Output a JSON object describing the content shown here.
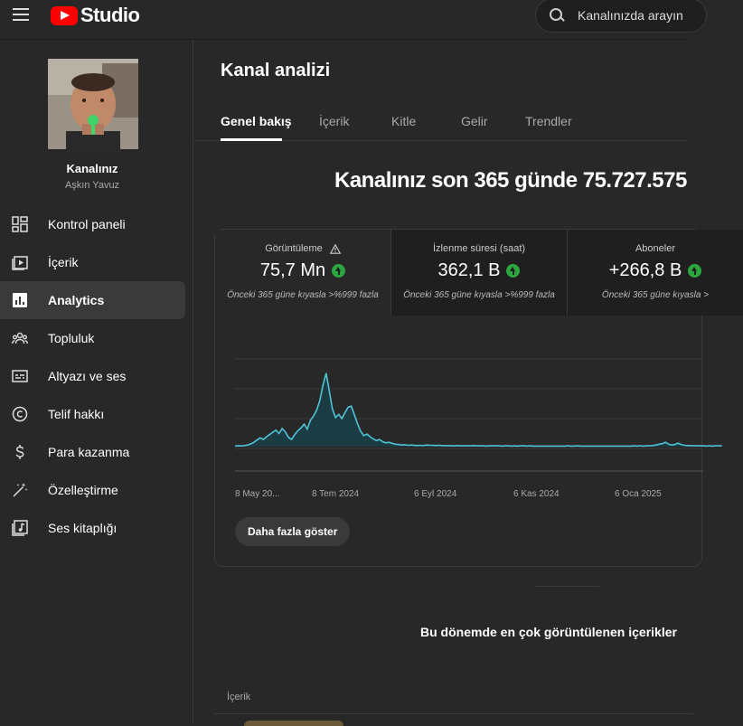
{
  "app": {
    "logo_text": "Studio",
    "brand_color": "#ff0000"
  },
  "search": {
    "placeholder": "Kanalınızda arayın"
  },
  "sidebar": {
    "channel_name": "Kanalınız",
    "channel_owner": "Aşkın Yavuz",
    "items": [
      {
        "label": "Kontrol paneli",
        "icon": "dashboard-icon"
      },
      {
        "label": "İçerik",
        "icon": "content-icon"
      },
      {
        "label": "Analytics",
        "icon": "analytics-icon",
        "active": true
      },
      {
        "label": "Topluluk",
        "icon": "community-icon"
      },
      {
        "label": "Altyazı ve ses",
        "icon": "subtitles-icon"
      },
      {
        "label": "Telif hakkı",
        "icon": "copyright-icon"
      },
      {
        "label": "Para kazanma",
        "icon": "dollar-icon"
      },
      {
        "label": "Özelleştirme",
        "icon": "magic-wand-icon"
      },
      {
        "label": "Ses kitaplığı",
        "icon": "audio-library-icon"
      }
    ]
  },
  "main": {
    "title": "Kanal analizi",
    "tabs": [
      "Genel bakış",
      "İçerik",
      "Kitle",
      "Gelir",
      "Trendler"
    ],
    "headline": "Kanalınız son 365 günde 75.727.575",
    "metrics": [
      {
        "label": "Görüntüleme",
        "value": "75,7 Mn",
        "compare": "Önceki 365 güne kıyasla >%999 fazla"
      },
      {
        "label": "İzlenme süresi (saat)",
        "value": "362,1 B",
        "compare": "Önceki 365 güne kıyasla >%999 fazla"
      },
      {
        "label": "Aboneler",
        "value": "+266,8 B",
        "compare": "Önceki 365 güne kıyasla >"
      }
    ],
    "more_button": "Daha fazla göster",
    "top_content_title": "Bu dönemde en çok görüntülenen içerikler",
    "column_header": "İçerik"
  },
  "chart_data": {
    "type": "area",
    "x_tick_labels": [
      "8 May 20...",
      "8 Tem 2024",
      "6 Eyl 2024",
      "6 Kas 2024",
      "6 Oca 2025"
    ],
    "values": [
      0.2,
      0.3,
      0.25,
      0.4,
      0.6,
      1.0,
      1.6,
      2.4,
      3.2,
      2.6,
      3.6,
      4.4,
      5.2,
      6.0,
      4.8,
      6.6,
      5.4,
      3.4,
      2.6,
      4.4,
      5.8,
      6.8,
      8.2,
      6.4,
      9.6,
      11.2,
      13.4,
      16.8,
      22.4,
      26.8,
      20.4,
      13.8,
      10.6,
      11.8,
      10.2,
      12.4,
      14.4,
      14.8,
      11.6,
      8.4,
      5.6,
      4.0,
      4.6,
      3.6,
      2.8,
      2.2,
      2.6,
      1.8,
      1.4,
      1.6,
      1.2,
      0.9,
      0.8,
      0.6,
      0.7,
      0.5,
      0.6,
      0.5,
      0.4,
      0.5,
      0.4,
      0.6,
      0.5,
      0.5,
      0.4,
      0.5,
      0.4,
      0.3,
      0.4,
      0.3,
      0.3,
      0.4,
      0.3,
      0.3,
      0.3,
      0.3,
      0.4,
      0.3,
      0.3,
      0.3,
      0.2,
      0.3,
      0.3,
      0.3,
      0.3,
      0.2,
      0.3,
      0.3,
      0.2,
      0.3,
      0.2,
      0.3,
      0.3,
      0.2,
      0.3,
      0.2,
      0.2,
      0.2,
      0.2,
      0.2,
      0.2,
      0.2,
      0.2,
      0.2,
      0.2,
      0.2,
      0.3,
      0.2,
      0.2,
      0.3,
      0.2,
      0.2,
      0.2,
      0.2,
      0.2,
      0.2,
      0.2,
      0.2,
      0.2,
      0.2,
      0.2,
      0.2,
      0.2,
      0.2,
      0.2,
      0.2,
      0.2,
      0.3,
      0.2,
      0.3,
      0.2,
      0.3,
      0.3,
      0.4,
      0.6,
      0.9,
      1.1,
      1.6,
      0.9,
      0.6,
      0.8,
      1.3,
      0.8,
      0.5,
      0.4,
      0.4,
      0.3,
      0.3,
      0.3,
      0.3,
      0.2,
      0.3,
      0.2,
      0.3,
      0.3,
      0.3
    ],
    "line_color": "#4fc3d6",
    "fill_color": "#1c3c44",
    "grid": true,
    "ylim": [
      0,
      32
    ]
  }
}
